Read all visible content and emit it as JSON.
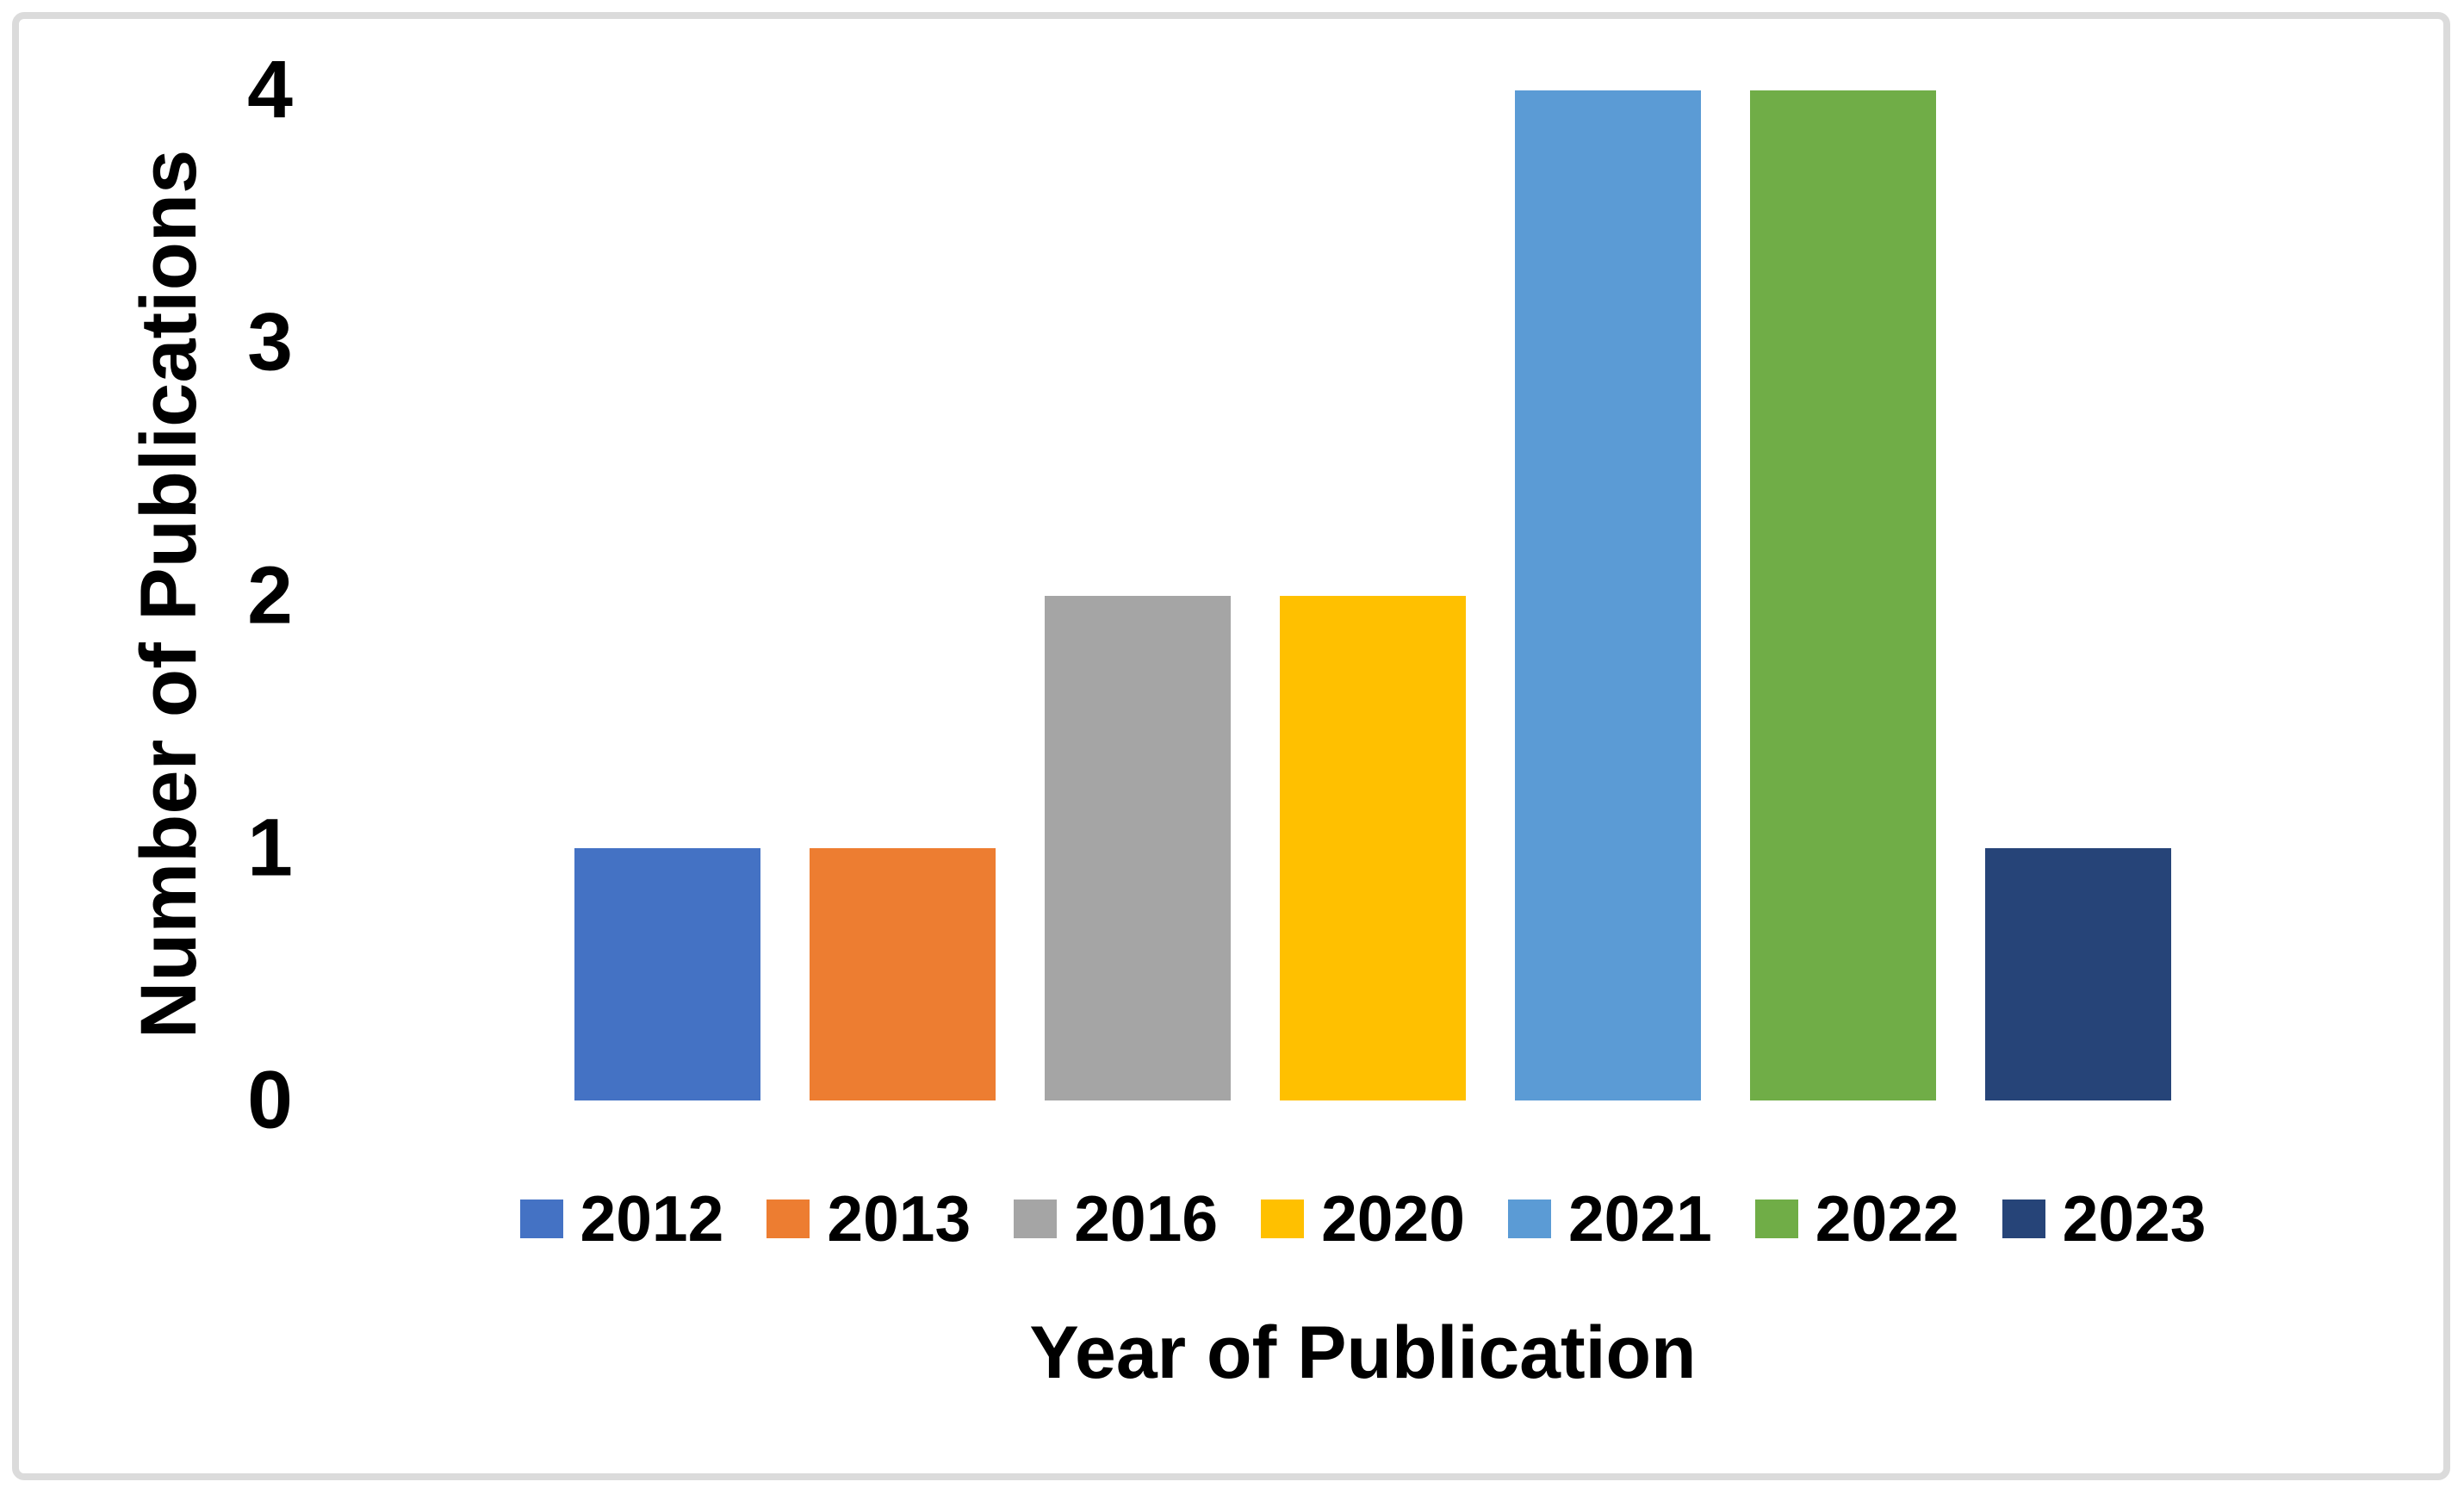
{
  "frame": {
    "border_color": "#DBDBDB"
  },
  "chart_data": {
    "type": "bar",
    "title": "",
    "categories": [
      "2012",
      "2013",
      "2016",
      "2020",
      "2021",
      "2022",
      "2023"
    ],
    "values": [
      1,
      1,
      2,
      2,
      4,
      4,
      1
    ],
    "colors": [
      "#4472C4",
      "#ED7D31",
      "#A5A5A5",
      "#FFC000",
      "#5B9BD5",
      "#70AD47",
      "#264478"
    ],
    "xlabel": "Year of Publication",
    "ylabel": "Number of Publications",
    "y_ticks": [
      0,
      1,
      2,
      3,
      4
    ],
    "ylim": [
      0,
      4
    ],
    "grid": false,
    "axis_lines": false,
    "legend_position": "bottom",
    "text_color": "#000000"
  }
}
